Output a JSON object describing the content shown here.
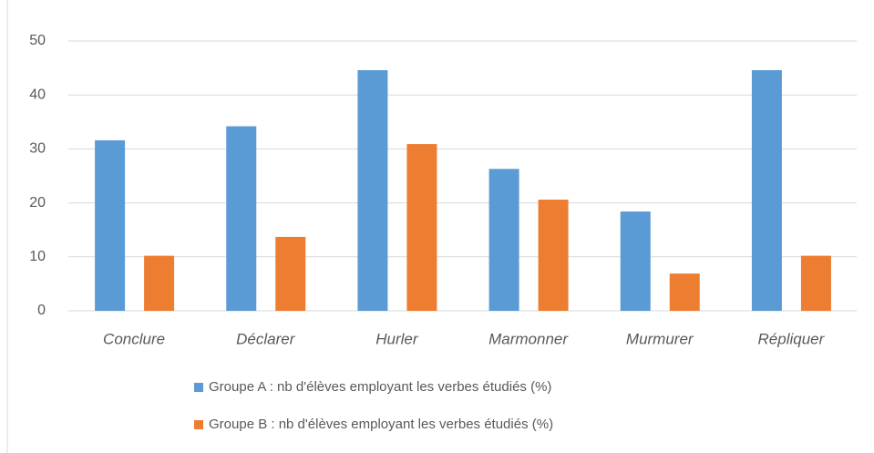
{
  "chart_data": {
    "type": "bar",
    "categories": [
      "Conclure",
      "Déclarer",
      "Hurler",
      "Marmonner",
      "Murmurer",
      "Répliquer"
    ],
    "series": [
      {
        "name": "Groupe A : nb d'élèves employant les verbes étudiés (%)",
        "color": "#5b9bd5",
        "values": [
          31.6,
          34.2,
          44.6,
          26.3,
          18.4,
          44.6
        ]
      },
      {
        "name": "Groupe B : nb d'élèves employant les verbes étudiés (%)",
        "color": "#ed7d31",
        "values": [
          10.2,
          13.7,
          30.9,
          20.6,
          6.9,
          10.2
        ]
      }
    ],
    "ylim": [
      0,
      50
    ],
    "yticks": [
      0,
      10,
      20,
      30,
      40,
      50
    ],
    "grid": true,
    "legend": "bottom"
  }
}
